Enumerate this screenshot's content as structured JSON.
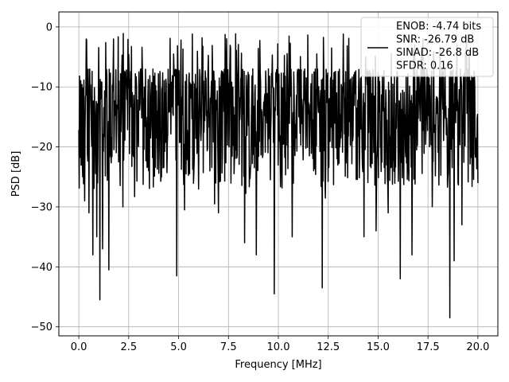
{
  "chart_data": {
    "type": "line",
    "xlabel": "Frequency [MHz]",
    "ylabel": "PSD [dB]",
    "xlim": [
      -1.0,
      21.0
    ],
    "ylim": [
      -51.5,
      2.5
    ],
    "x_ticks": [
      0.0,
      2.5,
      5.0,
      7.5,
      10.0,
      12.5,
      15.0,
      17.5,
      20.0
    ],
    "x_tick_labels": [
      "0.0",
      "2.5",
      "5.0",
      "7.5",
      "10.0",
      "12.5",
      "15.0",
      "17.5",
      "20.0"
    ],
    "y_ticks": [
      0,
      -10,
      -20,
      -30,
      -40,
      -50
    ],
    "y_tick_labels": [
      "0",
      "−10",
      "−20",
      "−30",
      "−40",
      "−50"
    ],
    "grid": true,
    "legend": {
      "placement": "top-right",
      "lines": [
        "ENOB: -4.74 bits",
        "SNR: -26.79 dB",
        "SINAD: -26.8 dB",
        "SFDR: 0.16"
      ]
    },
    "series": [
      {
        "color": "#000000",
        "x_range": [
          0.0,
          20.0
        ],
        "n_points": 1024,
        "typical_range_db": [
          -30,
          0
        ],
        "peak_max_db": 0,
        "deep_notches": [
          {
            "x": 0.2,
            "y": -25
          },
          {
            "x": 0.3,
            "y": -29
          },
          {
            "x": 0.5,
            "y": -31
          },
          {
            "x": 0.7,
            "y": -38
          },
          {
            "x": 0.9,
            "y": -35
          },
          {
            "x": 1.05,
            "y": -45.5
          },
          {
            "x": 1.2,
            "y": -37
          },
          {
            "x": 1.5,
            "y": -40.5
          },
          {
            "x": 2.2,
            "y": -30
          },
          {
            "x": 4.9,
            "y": -41.5
          },
          {
            "x": 5.3,
            "y": -30.5
          },
          {
            "x": 6.8,
            "y": -29.5
          },
          {
            "x": 7.0,
            "y": -31
          },
          {
            "x": 8.3,
            "y": -36
          },
          {
            "x": 8.9,
            "y": -38
          },
          {
            "x": 9.8,
            "y": -44.5
          },
          {
            "x": 10.7,
            "y": -35
          },
          {
            "x": 12.2,
            "y": -43.5
          },
          {
            "x": 14.3,
            "y": -35
          },
          {
            "x": 14.9,
            "y": -34
          },
          {
            "x": 15.5,
            "y": -31
          },
          {
            "x": 16.1,
            "y": -42
          },
          {
            "x": 16.7,
            "y": -38
          },
          {
            "x": 18.6,
            "y": -48.5
          },
          {
            "x": 18.8,
            "y": -39
          },
          {
            "x": 19.2,
            "y": -33
          }
        ]
      }
    ]
  }
}
